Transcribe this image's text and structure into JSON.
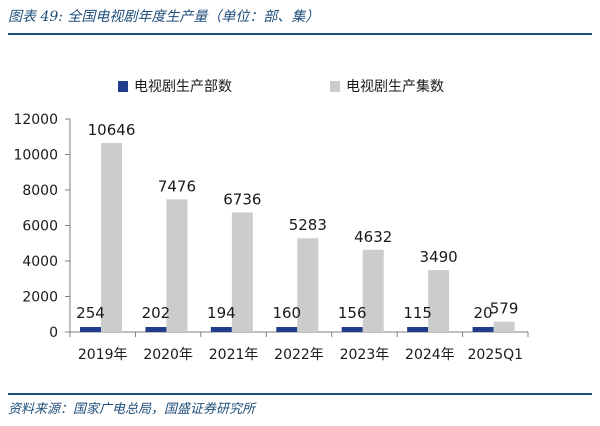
{
  "figure": {
    "title": "图表 49:  全国电视剧年度生产量（单位：部、集）",
    "source": "资料来源：国家广电总局，国盛证券研究所"
  },
  "colors": {
    "series_dept": "#1f3d8a",
    "series_eps": "#cccccc",
    "text": "#1a1a1a",
    "accent": "#1f4e79"
  },
  "chart_data": {
    "type": "bar",
    "title": "",
    "xlabel": "",
    "ylabel": "",
    "categories": [
      "2019年",
      "2020年",
      "2021年",
      "2022年",
      "2023年",
      "2024年",
      "2025Q1"
    ],
    "series": [
      {
        "name": "电视剧生产部数",
        "values": [
          254,
          202,
          194,
          160,
          156,
          115,
          20
        ]
      },
      {
        "name": "电视剧生产集数",
        "values": [
          10646,
          7476,
          6736,
          5283,
          4632,
          3490,
          579
        ]
      }
    ],
    "ylim": [
      0,
      12000
    ],
    "yticks": [
      0,
      2000,
      4000,
      6000,
      8000,
      10000,
      12000
    ],
    "grid": false,
    "legend_position": "top"
  }
}
